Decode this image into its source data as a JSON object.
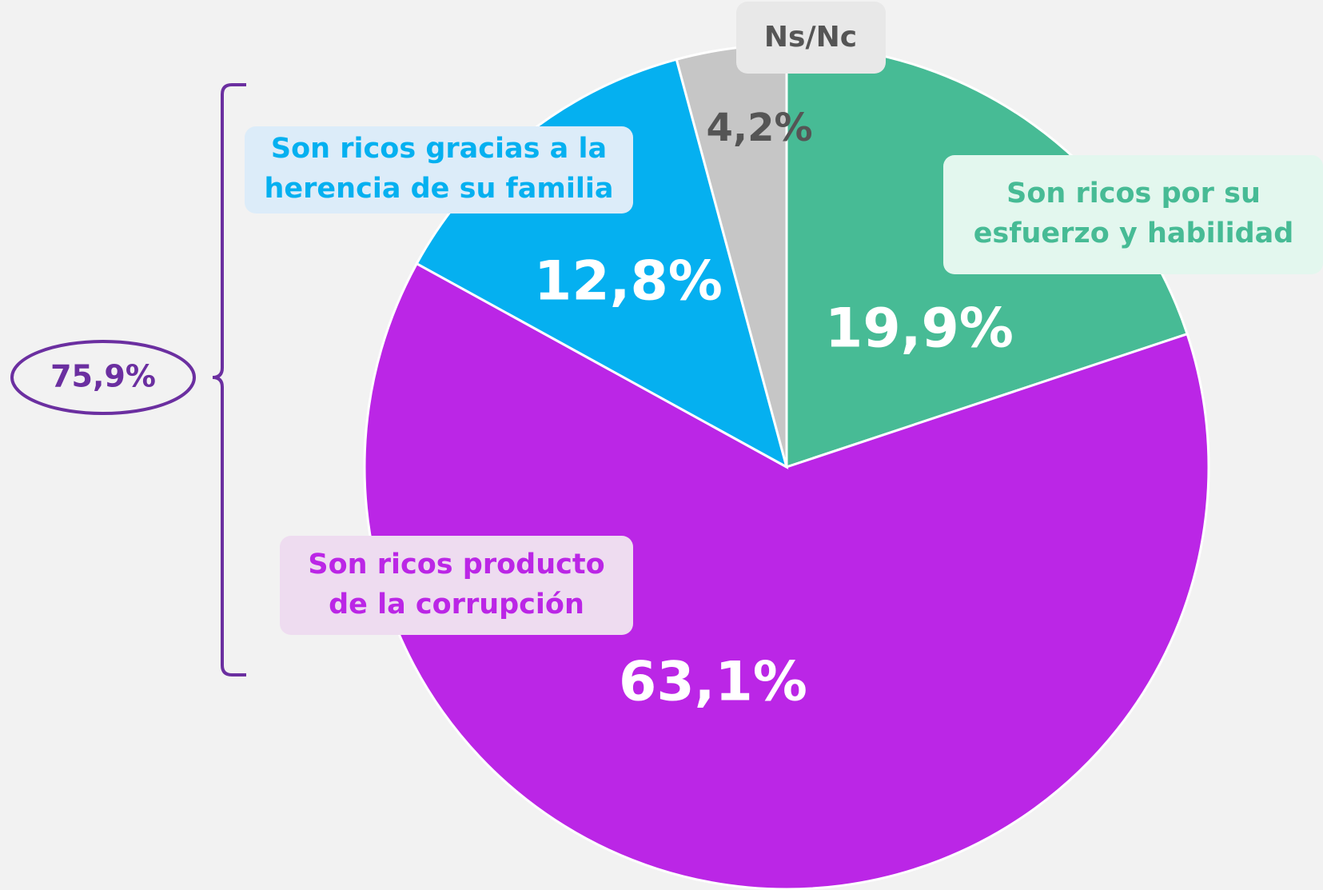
{
  "chart_data": {
    "type": "pie",
    "categories": [
      "Son ricos por su\nesfuerzo y habilidad",
      "Son ricos producto\nde la corrupción",
      "Son ricos gracias a la\nherencia de su familia",
      "Ns/Nc"
    ],
    "values": [
      19.9,
      63.1,
      12.8,
      4.2
    ],
    "value_labels": [
      "19,9%",
      "63,1%",
      "12,8%",
      "4,2%"
    ],
    "colors": [
      "#47bb95",
      "#bb26e6",
      "#05b0f0",
      "#c6c6c6"
    ],
    "annotations": [
      {
        "text": "75,9%"
      }
    ]
  }
}
